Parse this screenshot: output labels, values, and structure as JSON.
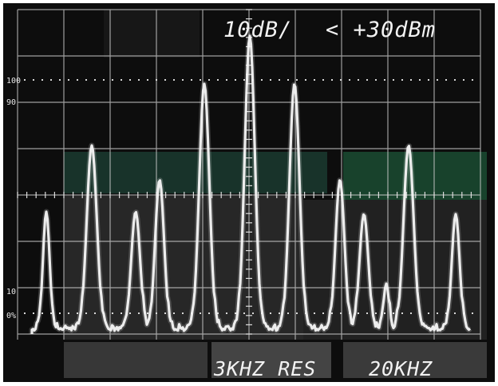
{
  "annotations": {
    "scale": "10dB/",
    "reference": "< +30dBm",
    "resolution": "3KHZ RES",
    "span": "20KHZ"
  },
  "graticule_marks": {
    "top_100": "100",
    "top_90": "90",
    "bottom_10": "10",
    "bottom_0": "0%"
  },
  "colors": {
    "screen": "#0d0d0d",
    "trace": "#f4f4f4",
    "graticule": "#cfcfcf",
    "tint_green": "#1f4a3a",
    "tint_gray": "#3a3a3a"
  }
}
